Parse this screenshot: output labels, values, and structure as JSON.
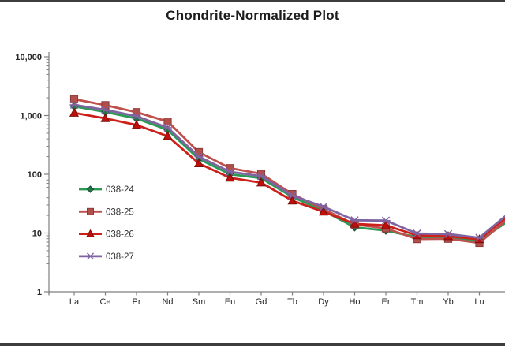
{
  "title": "Chondrite-Normalized Plot",
  "chart_data": {
    "type": "line",
    "title": "Chondrite-Normalized Plot",
    "xlabel": "",
    "ylabel": "",
    "x_categories": [
      "La",
      "Ce",
      "Pr",
      "Nd",
      "Sm",
      "Eu",
      "Gd",
      "Tb",
      "Dy",
      "Ho",
      "Er",
      "Tm",
      "Yb",
      "Lu"
    ],
    "y_axis": {
      "scale": "log",
      "min": 1,
      "max": 10000,
      "tick_values": [
        10000,
        1000,
        100,
        10,
        1
      ],
      "tick_labels": [
        "10,000",
        "1,000",
        "100",
        "10",
        "1"
      ],
      "minor_ticks": true
    },
    "grid": false,
    "legend_position": "inside-left",
    "plot_note": "lines continue rising past Lu and are cut off at the right image edge",
    "series": [
      {
        "name": "038-24",
        "marker": "diamond",
        "line_color": "#2a9a55",
        "marker_fill": "#1b7a43",
        "marker_stroke": "#24433a",
        "values": [
          1430,
          1150,
          890,
          570,
          182,
          100,
          86,
          41,
          24,
          12.5,
          11,
          8.5,
          8.4,
          7.4
        ],
        "edge_value_clipped": 17
      },
      {
        "name": "038-25",
        "marker": "square",
        "line_color": "#c0504d",
        "marker_fill": "#b04f4b",
        "marker_stroke": "#8c3a37",
        "values": [
          1900,
          1500,
          1140,
          790,
          238,
          127,
          102,
          46,
          25.5,
          14,
          12,
          7.9,
          8.0,
          6.8
        ],
        "edge_value_clipped": 19
      },
      {
        "name": "038-26",
        "marker": "triangle",
        "line_color": "#cc211b",
        "marker_fill": "#c00f0a",
        "marker_stroke": "#7a100d",
        "values": [
          1110,
          895,
          690,
          445,
          153,
          87,
          72,
          35.5,
          23,
          14.3,
          13.5,
          9.1,
          8.8,
          7.8
        ],
        "edge_value_clipped": 21
      },
      {
        "name": "038-27",
        "marker": "star",
        "line_color": "#8064a2",
        "marker_fill": "#8064a2",
        "marker_stroke": "#6a5390",
        "values": [
          1520,
          1250,
          975,
          620,
          200,
          110,
          93,
          43.5,
          28,
          16.5,
          16.3,
          9.8,
          9.6,
          8.3
        ],
        "edge_value_clipped": 23
      }
    ]
  },
  "colors": {
    "axis": "#7f7f7f",
    "tick_text": "#262626",
    "legend_text": "#333333",
    "title_text": "#1c1c1c",
    "edge_bars": "#3d3d3d"
  }
}
